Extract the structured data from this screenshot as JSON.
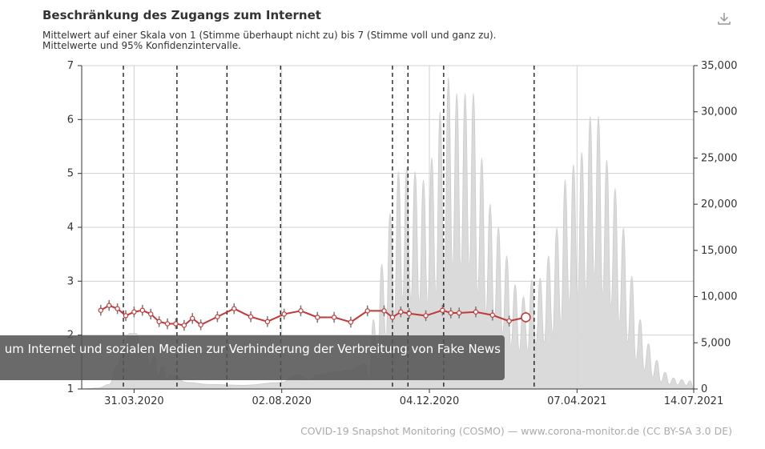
{
  "header": {
    "title": "Beschränkung des Zugangs zum Internet",
    "subtitle_line1": "Mittelwert auf einer Skala von 1 (Stimme überhaupt nicht zu) bis 7 (Stimme voll und ganz zu).",
    "subtitle_line2": "Mittelwerte und 95% Konfidenzintervalle.",
    "download_icon": "download-icon"
  },
  "tooltip": {
    "text": "um Internet und sozialen Medien zur Verhinderung der Verbreitung von Fake News"
  },
  "footer": {
    "text": "COVID-19 Snapshot Monitoring (COSMO) — www.corona-monitor.de (CC BY-SA 3.0 DE)"
  },
  "colors": {
    "line": "#c0393b",
    "area": "#d9d9d9",
    "grid": "#d0d0d0"
  },
  "chart_data": {
    "type": "line",
    "grid": true,
    "x_ticks": [
      "31.03.2020",
      "02.08.2020",
      "04.12.2020",
      "07.04.2021",
      "14.07.2021"
    ],
    "x_range": [
      "16.02.2020",
      "14.07.2021"
    ],
    "y_left": {
      "range": [
        1,
        7
      ],
      "ticks": [
        "1",
        "2",
        "3",
        "4",
        "5",
        "6",
        "7"
      ]
    },
    "y_right": {
      "range": [
        0,
        35000
      ],
      "ticks": [
        "0",
        "5,000",
        "10,000",
        "15,000",
        "20,000",
        "25,000",
        "30,000",
        "35,000"
      ]
    },
    "event_lines": [
      "22.03.2020",
      "06.05.2020",
      "17.06.2020",
      "01.08.2020",
      "03.11.2020",
      "16.11.2020",
      "16.12.2020",
      "02.03.2021"
    ],
    "mean_series": {
      "dates": [
        "03.03.2020",
        "10.03.2020",
        "17.03.2020",
        "24.03.2020",
        "31.03.2020",
        "07.04.2020",
        "14.04.2020",
        "21.04.2020",
        "28.04.2020",
        "05.05.2020",
        "12.05.2020",
        "19.05.2020",
        "26.05.2020",
        "09.06.2020",
        "23.06.2020",
        "07.07.2020",
        "21.07.2020",
        "04.08.2020",
        "18.08.2020",
        "01.09.2020",
        "15.09.2020",
        "29.09.2020",
        "13.10.2020",
        "27.10.2020",
        "03.11.2020",
        "10.11.2020",
        "17.11.2020",
        "01.12.2020",
        "15.12.2020",
        "22.12.2020",
        "29.12.2020",
        "12.01.2021",
        "26.01.2021",
        "09.02.2021",
        "23.02.2021"
      ],
      "values": [
        2.46,
        2.55,
        2.49,
        2.36,
        2.43,
        2.46,
        2.39,
        2.25,
        2.21,
        2.21,
        2.18,
        2.31,
        2.19,
        2.34,
        2.49,
        2.34,
        2.25,
        2.39,
        2.45,
        2.33,
        2.33,
        2.24,
        2.45,
        2.45,
        2.33,
        2.43,
        2.4,
        2.36,
        2.46,
        2.41,
        2.41,
        2.43,
        2.37,
        2.26,
        2.33
      ],
      "ci_halfwidth": 0.1
    },
    "cases_series": {
      "points": [
        [
          "16.02.2020",
          0
        ],
        [
          "01.03.2020",
          100
        ],
        [
          "10.03.2020",
          500
        ],
        [
          "17.03.2020",
          2500
        ],
        [
          "22.03.2020",
          4500
        ],
        [
          "27.03.2020",
          6000
        ],
        [
          "02.04.2020",
          6000
        ],
        [
          "06.04.2020",
          3500
        ],
        [
          "10.04.2020",
          5000
        ],
        [
          "13.04.2020",
          2500
        ],
        [
          "17.04.2020",
          3500
        ],
        [
          "20.04.2020",
          1500
        ],
        [
          "24.04.2020",
          2500
        ],
        [
          "27.04.2020",
          1000
        ],
        [
          "01.05.2020",
          1500
        ],
        [
          "15.05.2020",
          700
        ],
        [
          "01.06.2020",
          500
        ],
        [
          "01.07.2020",
          400
        ],
        [
          "01.08.2020",
          700
        ],
        [
          "15.08.2020",
          1500
        ],
        [
          "25.08.2020",
          1000
        ],
        [
          "01.09.2020",
          1500
        ],
        [
          "15.09.2020",
          1800
        ],
        [
          "29.09.2020",
          2000
        ],
        [
          "06.10.2020",
          2500
        ]
      ],
      "weekly_peaks_dates": [
        "11.10.2020",
        "18.10.2020",
        "25.10.2020",
        "01.11.2020",
        "08.11.2020",
        "15.11.2020",
        "22.11.2020",
        "29.11.2020",
        "06.12.2020",
        "13.12.2020",
        "20.12.2020",
        "27.12.2020",
        "03.01.2021",
        "10.01.2021",
        "17.01.2021",
        "24.01.2021",
        "31.01.2021",
        "07.02.2021",
        "14.02.2021",
        "21.02.2021",
        "28.02.2021",
        "07.03.2021",
        "14.03.2021",
        "21.03.2021",
        "28.03.2021",
        "04.04.2021",
        "11.04.2021",
        "18.04.2021",
        "25.04.2021",
        "02.05.2021",
        "09.05.2021",
        "16.05.2021",
        "23.05.2021",
        "30.05.2021",
        "06.06.2021",
        "13.06.2021",
        "20.06.2021",
        "27.06.2021",
        "04.07.2021",
        "11.07.2021"
      ],
      "weekly_peaks_values": [
        2700,
        7500,
        13500,
        19000,
        23500,
        24000,
        23500,
        22600,
        25000,
        30000,
        33700,
        32000,
        32000,
        32000,
        25000,
        20000,
        17500,
        14400,
        11300,
        10000,
        11800,
        12000,
        14400,
        17400,
        22600,
        24300,
        25600,
        29500,
        29500,
        24800,
        21700,
        17400,
        12200,
        7500,
        4900,
        3100,
        1800,
        1200,
        1000,
        900
      ]
    }
  }
}
